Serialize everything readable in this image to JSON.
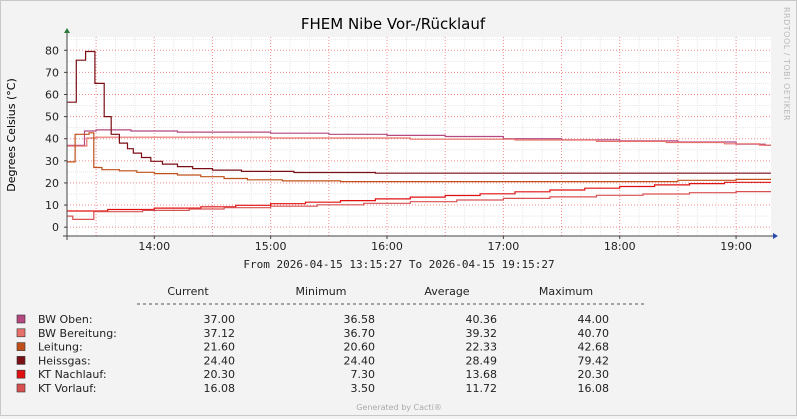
{
  "chart_data": {
    "type": "line",
    "title": "FHEM Nibe Vor-/Rücklauf",
    "ylabel": "Degrees Celsius (°C)",
    "xlabel": "",
    "ylim": [
      -4,
      86
    ],
    "xlim": [
      13.25,
      19.3
    ],
    "yticks": [
      0,
      10,
      20,
      30,
      40,
      50,
      60,
      70,
      80
    ],
    "xticks": [
      {
        "label": "14:00",
        "value": 14.0
      },
      {
        "label": "15:00",
        "value": 15.0
      },
      {
        "label": "16:00",
        "value": 16.0
      },
      {
        "label": "17:00",
        "value": 17.0
      },
      {
        "label": "18:00",
        "value": 18.0
      },
      {
        "label": "19:00",
        "value": 19.0
      }
    ],
    "grid": true,
    "range_text": "From 2026-04-15 13:15:27 To 2026-04-15 19:15:27",
    "side_text": "RRDTOOL / TOBI OETIKER",
    "footer": "Generated by Cacti®",
    "legend_headers": {
      "current": "Current",
      "minimum": "Minimum",
      "average": "Average",
      "maximum": "Maximum"
    },
    "series": [
      {
        "name": "BW Oben:",
        "color": "#b4487f",
        "current": "37.00",
        "minimum": "36.58",
        "average": "40.36",
        "maximum": "44.00",
        "points": [
          [
            13.25,
            37
          ],
          [
            13.4,
            37
          ],
          [
            13.4,
            43.5
          ],
          [
            13.5,
            43.5
          ],
          [
            13.5,
            44
          ],
          [
            13.8,
            44
          ],
          [
            13.8,
            43.5
          ],
          [
            14.2,
            43.5
          ],
          [
            14.2,
            43
          ],
          [
            15.0,
            43
          ],
          [
            15.0,
            42.5
          ],
          [
            15.5,
            42.5
          ],
          [
            15.5,
            42
          ],
          [
            16.0,
            42
          ],
          [
            16.0,
            41.5
          ],
          [
            16.5,
            41.5
          ],
          [
            16.5,
            41
          ],
          [
            17.0,
            41
          ],
          [
            17.0,
            40
          ],
          [
            17.5,
            40
          ],
          [
            17.5,
            39.5
          ],
          [
            18.0,
            39.5
          ],
          [
            18.0,
            39
          ],
          [
            18.5,
            39
          ],
          [
            18.5,
            38.5
          ],
          [
            19.0,
            38.5
          ],
          [
            19.0,
            37.5
          ],
          [
            19.25,
            37.5
          ],
          [
            19.25,
            37
          ],
          [
            19.3,
            37
          ]
        ]
      },
      {
        "name": "BW Bereitung:",
        "color": "#e8706a",
        "current": "37.12",
        "minimum": "36.70",
        "average": "39.32",
        "maximum": "40.70",
        "points": [
          [
            13.25,
            36.7
          ],
          [
            13.42,
            36.7
          ],
          [
            13.42,
            40.3
          ],
          [
            13.5,
            40.3
          ],
          [
            13.5,
            40.7
          ],
          [
            15.0,
            40.7
          ],
          [
            15.0,
            40.3
          ],
          [
            16.2,
            40.3
          ],
          [
            16.2,
            39.8
          ],
          [
            17.1,
            39.8
          ],
          [
            17.1,
            39.4
          ],
          [
            17.8,
            39.4
          ],
          [
            17.8,
            38.8
          ],
          [
            18.4,
            38.8
          ],
          [
            18.4,
            38.3
          ],
          [
            18.9,
            38.3
          ],
          [
            18.9,
            37.7
          ],
          [
            19.2,
            37.7
          ],
          [
            19.2,
            37.1
          ],
          [
            19.3,
            37.1
          ]
        ]
      },
      {
        "name": "Leitung:",
        "color": "#c0501a",
        "current": "21.60",
        "minimum": "20.60",
        "average": "22.33",
        "maximum": "42.68",
        "points": [
          [
            13.25,
            29.5
          ],
          [
            13.32,
            29.5
          ],
          [
            13.32,
            42
          ],
          [
            13.44,
            42
          ],
          [
            13.44,
            42.68
          ],
          [
            13.48,
            42.68
          ],
          [
            13.48,
            27
          ],
          [
            13.55,
            27
          ],
          [
            13.55,
            26
          ],
          [
            13.7,
            26
          ],
          [
            13.7,
            25.5
          ],
          [
            13.85,
            25.5
          ],
          [
            13.85,
            24.8
          ],
          [
            14.0,
            24.8
          ],
          [
            14.0,
            24.2
          ],
          [
            14.2,
            24.2
          ],
          [
            14.2,
            23.6
          ],
          [
            14.4,
            23.6
          ],
          [
            14.4,
            22.8
          ],
          [
            14.6,
            22.8
          ],
          [
            14.6,
            22
          ],
          [
            14.8,
            22
          ],
          [
            14.8,
            21.4
          ],
          [
            15.1,
            21.4
          ],
          [
            15.1,
            20.9
          ],
          [
            15.6,
            20.9
          ],
          [
            15.6,
            20.6
          ],
          [
            18.5,
            20.6
          ],
          [
            18.5,
            21.2
          ],
          [
            19.0,
            21.2
          ],
          [
            19.0,
            21.6
          ],
          [
            19.3,
            21.6
          ]
        ]
      },
      {
        "name": "Heissgas:",
        "color": "#7a0f16",
        "current": "24.40",
        "minimum": "24.40",
        "average": "28.49",
        "maximum": "79.42",
        "points": [
          [
            13.25,
            56.5
          ],
          [
            13.33,
            56.5
          ],
          [
            13.33,
            75.5
          ],
          [
            13.41,
            75.5
          ],
          [
            13.41,
            79.42
          ],
          [
            13.49,
            79.42
          ],
          [
            13.49,
            65
          ],
          [
            13.57,
            65
          ],
          [
            13.57,
            50
          ],
          [
            13.63,
            50
          ],
          [
            13.63,
            42
          ],
          [
            13.7,
            42
          ],
          [
            13.7,
            38
          ],
          [
            13.77,
            38
          ],
          [
            13.77,
            35.5
          ],
          [
            13.82,
            35.5
          ],
          [
            13.82,
            33.5
          ],
          [
            13.89,
            33.5
          ],
          [
            13.89,
            31.5
          ],
          [
            13.97,
            31.5
          ],
          [
            13.97,
            29.8
          ],
          [
            14.07,
            29.8
          ],
          [
            14.07,
            28.5
          ],
          [
            14.2,
            28.5
          ],
          [
            14.2,
            27.4
          ],
          [
            14.33,
            27.4
          ],
          [
            14.33,
            26.5
          ],
          [
            14.5,
            26.5
          ],
          [
            14.5,
            25.8
          ],
          [
            14.75,
            25.8
          ],
          [
            14.75,
            25.2
          ],
          [
            15.2,
            25.2
          ],
          [
            15.2,
            24.7
          ],
          [
            15.9,
            24.7
          ],
          [
            15.9,
            24.4
          ],
          [
            19.3,
            24.4
          ]
        ]
      },
      {
        "name": "KT Nachlauf:",
        "color": "#e01010",
        "current": "20.30",
        "minimum": "7.30",
        "average": "13.68",
        "maximum": "20.30",
        "points": [
          [
            13.25,
            7.3
          ],
          [
            13.6,
            7.3
          ],
          [
            13.6,
            8
          ],
          [
            14.0,
            8
          ],
          [
            14.0,
            8.6
          ],
          [
            14.4,
            8.6
          ],
          [
            14.4,
            9.2
          ],
          [
            14.7,
            9.2
          ],
          [
            14.7,
            9.9
          ],
          [
            15.0,
            9.9
          ],
          [
            15.0,
            10.6
          ],
          [
            15.3,
            10.6
          ],
          [
            15.3,
            11.3
          ],
          [
            15.6,
            11.3
          ],
          [
            15.6,
            12
          ],
          [
            15.9,
            12
          ],
          [
            15.9,
            12.8
          ],
          [
            16.2,
            12.8
          ],
          [
            16.2,
            13.6
          ],
          [
            16.5,
            13.6
          ],
          [
            16.5,
            14.3
          ],
          [
            16.8,
            14.3
          ],
          [
            16.8,
            15.1
          ],
          [
            17.1,
            15.1
          ],
          [
            17.1,
            16
          ],
          [
            17.4,
            16
          ],
          [
            17.4,
            16.8
          ],
          [
            17.7,
            16.8
          ],
          [
            17.7,
            17.6
          ],
          [
            18.0,
            17.6
          ],
          [
            18.0,
            18.4
          ],
          [
            18.3,
            18.4
          ],
          [
            18.3,
            19.1
          ],
          [
            18.6,
            19.1
          ],
          [
            18.6,
            19.7
          ],
          [
            18.9,
            19.7
          ],
          [
            18.9,
            20.3
          ],
          [
            19.3,
            20.3
          ]
        ]
      },
      {
        "name": "KT Vorlauf:",
        "color": "#d95050",
        "current": "16.08",
        "minimum": "3.50",
        "average": "11.72",
        "maximum": "16.08",
        "points": [
          [
            13.25,
            5
          ],
          [
            13.3,
            5
          ],
          [
            13.3,
            3.5
          ],
          [
            13.48,
            3.5
          ],
          [
            13.48,
            7
          ],
          [
            13.9,
            7
          ],
          [
            13.9,
            7.6
          ],
          [
            14.3,
            7.6
          ],
          [
            14.3,
            8.2
          ],
          [
            14.6,
            8.2
          ],
          [
            14.6,
            8.8
          ],
          [
            15.0,
            8.8
          ],
          [
            15.0,
            9.5
          ],
          [
            15.4,
            9.5
          ],
          [
            15.4,
            10.1
          ],
          [
            15.8,
            10.1
          ],
          [
            15.8,
            10.8
          ],
          [
            16.2,
            10.8
          ],
          [
            16.2,
            11.5
          ],
          [
            16.6,
            11.5
          ],
          [
            16.6,
            12.3
          ],
          [
            17.0,
            12.3
          ],
          [
            17.0,
            13
          ],
          [
            17.4,
            13
          ],
          [
            17.4,
            13.7
          ],
          [
            17.8,
            13.7
          ],
          [
            17.8,
            14.4
          ],
          [
            18.2,
            14.4
          ],
          [
            18.2,
            15
          ],
          [
            18.6,
            15
          ],
          [
            18.6,
            15.6
          ],
          [
            19.0,
            15.6
          ],
          [
            19.0,
            16.08
          ],
          [
            19.3,
            16.08
          ]
        ]
      }
    ]
  }
}
